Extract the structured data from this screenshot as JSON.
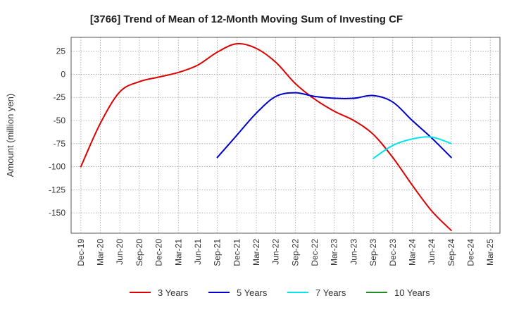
{
  "chart_data": {
    "type": "line",
    "title": "[3766]  Trend of Mean of 12-Month Moving Sum of Investing CF",
    "ylabel": "Amount (million yen)",
    "xlabel": "",
    "ylim": [
      -172,
      40
    ],
    "yticks": [
      25,
      0,
      -25,
      -50,
      -75,
      -100,
      -125,
      -150
    ],
    "x_ticks": [
      "Dec-19",
      "Mar-20",
      "Jun-20",
      "Sep-20",
      "Dec-20",
      "Mar-21",
      "Jun-21",
      "Sep-21",
      "Dec-21",
      "Mar-22",
      "Jun-22",
      "Sep-22",
      "Dec-22",
      "Mar-23",
      "Jun-23",
      "Sep-23",
      "Dec-23",
      "Mar-24",
      "Jun-24",
      "Sep-24",
      "Dec-24",
      "Mar-25"
    ],
    "grid": true,
    "legend_position": "bottom",
    "series": [
      {
        "name": "3 Years",
        "color": "#dd0000",
        "points": [
          [
            "Dec-19",
            -100
          ],
          [
            "Mar-20",
            -53
          ],
          [
            "Jun-20",
            -19
          ],
          [
            "Sep-20",
            -8
          ],
          [
            "Dec-20",
            -3
          ],
          [
            "Mar-21",
            2
          ],
          [
            "Jun-21",
            10
          ],
          [
            "Sep-21",
            24
          ],
          [
            "Dec-21",
            33
          ],
          [
            "Mar-22",
            28
          ],
          [
            "Jun-22",
            13
          ],
          [
            "Sep-22",
            -10
          ],
          [
            "Dec-22",
            -27
          ],
          [
            "Mar-23",
            -40
          ],
          [
            "Jun-23",
            -50
          ],
          [
            "Sep-23",
            -65
          ],
          [
            "Dec-23",
            -90
          ],
          [
            "Mar-24",
            -120
          ],
          [
            "Jun-24",
            -148
          ],
          [
            "Sep-24",
            -169
          ]
        ]
      },
      {
        "name": "5 Years",
        "color": "#0000cc",
        "points": [
          [
            "Sep-21",
            -90
          ],
          [
            "Dec-21",
            -66
          ],
          [
            "Mar-22",
            -42
          ],
          [
            "Jun-22",
            -24
          ],
          [
            "Sep-22",
            -20
          ],
          [
            "Dec-22",
            -24
          ],
          [
            "Mar-23",
            -26
          ],
          [
            "Jun-23",
            -26
          ],
          [
            "Sep-23",
            -23
          ],
          [
            "Dec-23",
            -30
          ],
          [
            "Mar-24",
            -50
          ],
          [
            "Jun-24",
            -69
          ],
          [
            "Sep-24",
            -90
          ]
        ]
      },
      {
        "name": "7 Years",
        "color": "#00e5ee",
        "points": [
          [
            "Sep-23",
            -91
          ],
          [
            "Dec-23",
            -77
          ],
          [
            "Mar-24",
            -70
          ],
          [
            "Jun-24",
            -68
          ],
          [
            "Sep-24",
            -75
          ]
        ]
      },
      {
        "name": "10 Years",
        "color": "#228b22",
        "points": []
      }
    ]
  }
}
